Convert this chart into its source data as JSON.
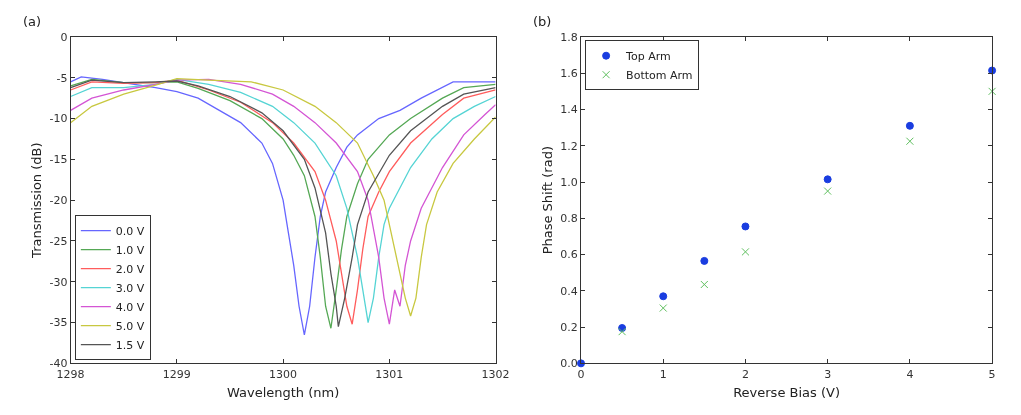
{
  "chart_data": [
    {
      "type": "line",
      "title": "(a)",
      "xlabel": "Wavelength (nm)",
      "ylabel": "Transmission (dB)",
      "xlim": [
        1298,
        1302
      ],
      "xticks": [
        1298,
        1299,
        1300,
        1301,
        1302
      ],
      "ylim": [
        -40,
        0
      ],
      "yticks": [
        -40,
        -35,
        -30,
        -25,
        -20,
        -15,
        -10,
        -5,
        0
      ],
      "legend": "bottom left",
      "marker": "none",
      "line_style": "solid",
      "series": [
        {
          "name": "0.0 V",
          "color": "#6666ff",
          "x": [
            1298,
            1298.1,
            1298.3,
            1298.6,
            1298.8,
            1299.0,
            1299.2,
            1299.4,
            1299.6,
            1299.8,
            1299.9,
            1300.0,
            1300.05,
            1300.1,
            1300.15,
            1300.2,
            1300.25,
            1300.3,
            1300.35,
            1300.4,
            1300.5,
            1300.6,
            1300.7,
            1300.9,
            1301.1,
            1301.3,
            1301.6,
            1302
          ],
          "values": [
            -5.5,
            -4.9,
            -5.2,
            -5.8,
            -6.2,
            -6.7,
            -7.5,
            -9.0,
            -10.5,
            -13,
            -15.5,
            -20,
            -24,
            -28,
            -33,
            -36.5,
            -33,
            -27,
            -22,
            -19,
            -16,
            -13.5,
            -12,
            -10,
            -9,
            -7.5,
            -5.5,
            -5.5
          ]
        },
        {
          "name": "1.0 V",
          "color": "#55a855",
          "x": [
            1298,
            1298.2,
            1298.5,
            1298.8,
            1299.0,
            1299.2,
            1299.5,
            1299.8,
            1300.0,
            1300.1,
            1300.2,
            1300.3,
            1300.35,
            1300.4,
            1300.45,
            1300.5,
            1300.55,
            1300.6,
            1300.7,
            1300.8,
            1301.0,
            1301.2,
            1301.5,
            1301.7,
            1302
          ],
          "values": [
            -6.0,
            -5.2,
            -5.6,
            -5.6,
            -5.5,
            -6.3,
            -7.8,
            -10,
            -12.5,
            -14.5,
            -17,
            -22,
            -27,
            -33,
            -35.7,
            -31,
            -26,
            -22,
            -18,
            -15,
            -12,
            -10,
            -7.5,
            -6.2,
            -5.8
          ]
        },
        {
          "name": "2.0 V",
          "color": "#ff5c5c",
          "x": [
            1298,
            1298.2,
            1298.5,
            1298.8,
            1299.0,
            1299.3,
            1299.6,
            1299.9,
            1300.1,
            1300.3,
            1300.4,
            1300.5,
            1300.55,
            1300.6,
            1300.65,
            1300.7,
            1300.75,
            1300.8,
            1300.9,
            1301.0,
            1301.2,
            1301.5,
            1301.7,
            1302
          ],
          "values": [
            -6.5,
            -5.5,
            -5.7,
            -5.6,
            -5.3,
            -6.5,
            -8,
            -10.5,
            -13,
            -16.5,
            -20,
            -25,
            -29,
            -33,
            -35.2,
            -31,
            -26,
            -22,
            -19,
            -16.5,
            -13,
            -9.5,
            -7.5,
            -6.5
          ]
        },
        {
          "name": "3.0 V",
          "color": "#55d4d4",
          "x": [
            1298,
            1298.2,
            1298.5,
            1298.8,
            1299.0,
            1299.3,
            1299.6,
            1299.9,
            1300.1,
            1300.3,
            1300.5,
            1300.6,
            1300.7,
            1300.75,
            1300.8,
            1300.85,
            1300.9,
            1300.95,
            1301.0,
            1301.2,
            1301.4,
            1301.6,
            1301.8,
            1302
          ],
          "values": [
            -7.3,
            -6.2,
            -6.2,
            -5.8,
            -5.2,
            -5.8,
            -6.8,
            -8.5,
            -10.5,
            -13,
            -17,
            -21,
            -27,
            -31,
            -35,
            -32,
            -27,
            -23,
            -21,
            -16,
            -12.5,
            -10,
            -8.5,
            -7.3
          ]
        },
        {
          "name": "4.0 V",
          "color": "#d455d4",
          "x": [
            1298,
            1298.2,
            1298.5,
            1298.8,
            1299.0,
            1299.3,
            1299.6,
            1299.9,
            1300.1,
            1300.3,
            1300.5,
            1300.7,
            1300.8,
            1300.9,
            1300.95,
            1301.0,
            1301.05,
            1301.1,
            1301.15,
            1301.2,
            1301.3,
            1301.5,
            1301.7,
            1301.9,
            1302
          ],
          "values": [
            -9,
            -7.5,
            -6.5,
            -5.8,
            -5.3,
            -5.2,
            -5.8,
            -7,
            -8.5,
            -10.5,
            -13,
            -16.5,
            -20,
            -27,
            -32,
            -35.2,
            -31,
            -33,
            -28,
            -25,
            -21,
            -16,
            -12,
            -9.5,
            -8.3
          ]
        },
        {
          "name": "5.0 V",
          "color": "#c8c840",
          "x": [
            1298,
            1298.2,
            1298.5,
            1298.8,
            1299.0,
            1299.3,
            1299.7,
            1300.0,
            1300.3,
            1300.5,
            1300.7,
            1300.85,
            1300.95,
            1301.05,
            1301.1,
            1301.15,
            1301.2,
            1301.25,
            1301.3,
            1301.35,
            1301.45,
            1301.6,
            1301.8,
            1302
          ],
          "values": [
            -10.5,
            -8.5,
            -7,
            -5.9,
            -5.1,
            -5.3,
            -5.5,
            -6.5,
            -8.5,
            -10.5,
            -13,
            -17,
            -20,
            -26,
            -29,
            -32,
            -34.2,
            -32,
            -27,
            -23,
            -19,
            -15.5,
            -12.5,
            -9.8
          ]
        },
        {
          "name": "1.5 V",
          "color": "#555555",
          "x": [
            1298,
            1298.2,
            1298.5,
            1298.8,
            1299.0,
            1299.2,
            1299.5,
            1299.8,
            1300.0,
            1300.2,
            1300.3,
            1300.4,
            1300.45,
            1300.5,
            1300.52,
            1300.58,
            1300.65,
            1300.7,
            1300.8,
            1301.0,
            1301.2,
            1301.5,
            1301.7,
            1302
          ],
          "values": [
            -6.2,
            -5.3,
            -5.6,
            -5.5,
            -5.4,
            -6,
            -7.3,
            -9.3,
            -11.5,
            -15,
            -18.5,
            -24,
            -29,
            -33,
            -35.5,
            -32,
            -27,
            -23,
            -19,
            -14.5,
            -11.5,
            -8.5,
            -7,
            -6.2
          ]
        }
      ]
    },
    {
      "type": "scatter",
      "title": "(b)",
      "xlabel": "Reverse Bias (V)",
      "ylabel": "Phase Shift (rad)",
      "xlim": [
        0,
        5
      ],
      "xticks": [
        0,
        1,
        2,
        3,
        4,
        5
      ],
      "ylim": [
        0,
        1.8
      ],
      "yticks": [
        {
          "value": 0,
          "label": "0.0"
        },
        0.2,
        0.4,
        0.6,
        0.8,
        {
          "value": 1,
          "label": "1.0"
        },
        1.2,
        1.4,
        1.6,
        1.8
      ],
      "legend": "top left",
      "series": [
        {
          "name": "Top Arm",
          "color": "#1a3de0",
          "marker": "circle",
          "x": [
            0,
            0.5,
            1,
            1.5,
            2,
            3,
            4,
            5
          ],
          "values": [
            0,
            0.195,
            0.37,
            0.565,
            0.755,
            1.015,
            1.31,
            1.615
          ]
        },
        {
          "name": "Bottom Arm",
          "color": "#60c060",
          "marker": "cross",
          "x": [
            0.5,
            1,
            1.5,
            2,
            3,
            4,
            5
          ],
          "values": [
            0.175,
            0.305,
            0.435,
            0.615,
            0.95,
            1.225,
            1.5
          ]
        }
      ]
    }
  ]
}
